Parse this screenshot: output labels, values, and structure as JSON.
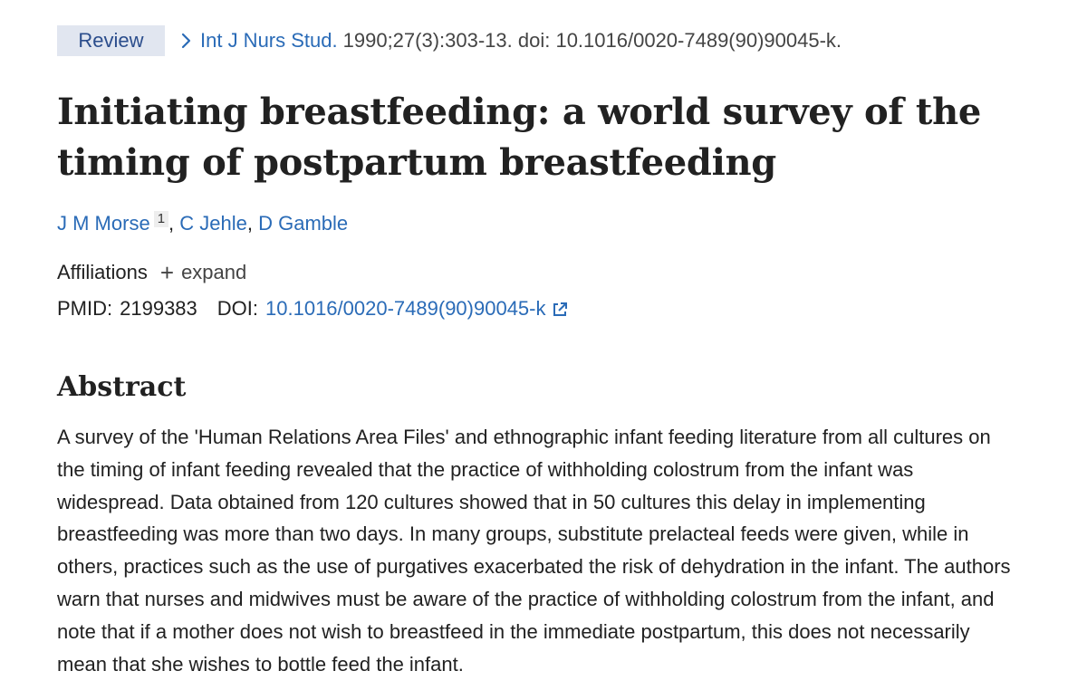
{
  "header": {
    "badge": "Review",
    "journal": "Int J Nurs Stud.",
    "citation": "1990;27(3):303-13. doi: 10.1016/0020-7489(90)90045-k."
  },
  "title": "Initiating breastfeeding: a world survey of the timing of postpartum breastfeeding",
  "authors": [
    {
      "name": "J M Morse",
      "affiliation_ref": "1"
    },
    {
      "name": "C Jehle"
    },
    {
      "name": "D Gamble"
    }
  ],
  "affiliations": {
    "label": "Affiliations",
    "expand_icon": "plus-icon",
    "expand_label": "expand"
  },
  "identifiers": {
    "pmid_label": "PMID:",
    "pmid": "2199383",
    "doi_label": "DOI:",
    "doi": "10.1016/0020-7489(90)90045-k",
    "doi_icon": "external-link-icon"
  },
  "abstract": {
    "heading": "Abstract",
    "text": "A survey of the 'Human Relations Area Files' and ethnographic infant feeding literature from all cultures on the timing of infant feeding revealed that the practice of withholding colostrum from the infant was widespread. Data obtained from 120 cultures showed that in 50 cultures this delay in implementing breastfeeding was more than two days. In many groups, substitute prelacteal feeds were given, while in others, practices such as the use of purgatives exacerbated the risk of dehydration in the infant. The authors warn that nurses and midwives must be aware of the practice of withholding colostrum from the infant, and note that if a mother does not wish to breastfeed in the immediate postpartum, this does not necessarily mean that she wishes to bottle feed the infant."
  },
  "colors": {
    "link": "#2a6bb7",
    "badge_bg": "#e1e6f0",
    "badge_text": "#2b4d8c",
    "text": "#212121"
  }
}
